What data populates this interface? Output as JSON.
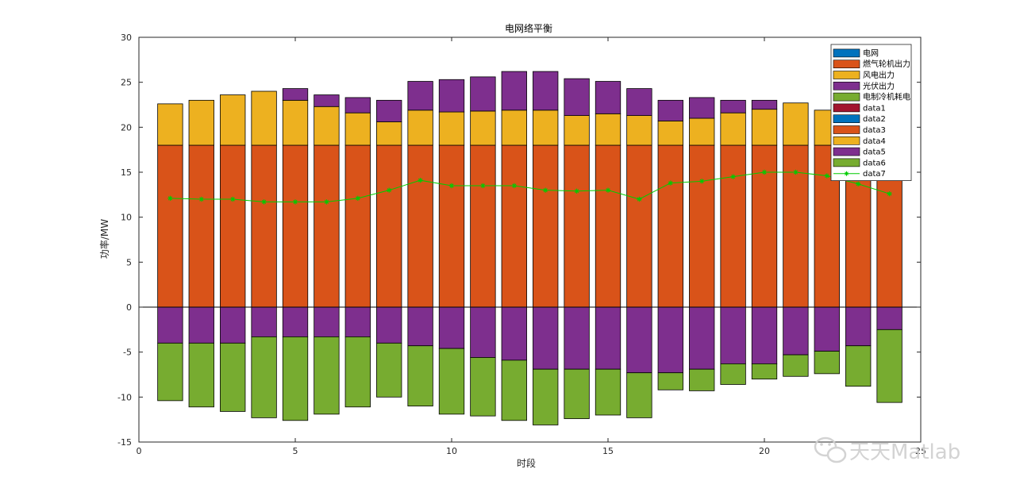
{
  "chart_data": {
    "type": "bar",
    "stacked": true,
    "title": "电网络平衡",
    "xlabel": "时段",
    "ylabel": "功率/MW",
    "xlim": [
      0,
      25
    ],
    "ylim": [
      -15,
      30
    ],
    "xticks": [
      0,
      5,
      10,
      15,
      20,
      25
    ],
    "yticks": [
      -15,
      -10,
      -5,
      0,
      5,
      10,
      15,
      20,
      25,
      30
    ],
    "grid": false,
    "legend_position": "top-right",
    "x": [
      1,
      2,
      3,
      4,
      5,
      6,
      7,
      8,
      9,
      10,
      11,
      12,
      13,
      14,
      15,
      16,
      17,
      18,
      19,
      20,
      21,
      22,
      23,
      24
    ],
    "positive_series": [
      {
        "name": "电网",
        "color": "#0072BD",
        "values": [
          0,
          0,
          0,
          0,
          0,
          0,
          0,
          0,
          0,
          0,
          0,
          0,
          0,
          0,
          0,
          0,
          0,
          0,
          0,
          0,
          0,
          0,
          0,
          0
        ]
      },
      {
        "name": "燃气轮机出力",
        "color": "#D95319",
        "values": [
          18,
          18,
          18,
          18,
          18,
          18,
          18,
          18,
          18,
          18,
          18,
          18,
          18,
          18,
          18,
          18,
          18,
          18,
          18,
          18,
          18,
          18,
          18,
          18
        ]
      },
      {
        "name": "风电出力",
        "color": "#EDB120",
        "values": [
          4.6,
          5.0,
          5.6,
          6.0,
          5.0,
          4.3,
          3.6,
          2.6,
          3.9,
          3.7,
          3.8,
          3.9,
          3.9,
          3.3,
          3.5,
          3.3,
          2.7,
          3.0,
          3.6,
          4.0,
          4.7,
          3.9,
          0,
          0
        ]
      },
      {
        "name": "光伏出力",
        "color": "#7E2F8E",
        "values": [
          0,
          0,
          0,
          0,
          1.3,
          1.3,
          1.7,
          2.4,
          3.2,
          3.6,
          3.8,
          4.3,
          4.3,
          4.1,
          3.6,
          3.0,
          2.3,
          2.3,
          1.4,
          1.0,
          0,
          0,
          0,
          0
        ]
      },
      {
        "name": "电制冷机耗电",
        "color": "#77AC30",
        "values": [
          0,
          0,
          0,
          0,
          0,
          0,
          0,
          0,
          0,
          0,
          0,
          0,
          0,
          0,
          0,
          0,
          0,
          0,
          0,
          0,
          0,
          0,
          0,
          0
        ]
      }
    ],
    "negative_series": [
      {
        "name": "data1",
        "color": "#A2142F",
        "values": [
          0,
          0,
          0,
          0,
          0,
          0,
          0,
          0,
          0,
          0,
          0,
          0,
          0,
          0,
          0,
          0,
          0,
          0,
          0,
          0,
          0,
          0,
          0,
          0
        ]
      },
      {
        "name": "data2",
        "color": "#0072BD",
        "values": [
          0,
          0,
          0,
          0,
          0,
          0,
          0,
          0,
          0,
          0,
          0,
          0,
          0,
          0,
          0,
          0,
          0,
          0,
          0,
          0,
          0,
          0,
          0,
          0
        ]
      },
      {
        "name": "data3",
        "color": "#D95319",
        "values": [
          0,
          0,
          0,
          0,
          0,
          0,
          0,
          0,
          0,
          0,
          0,
          0,
          0,
          0,
          0,
          0,
          0,
          0,
          0,
          0,
          0,
          0,
          0,
          0
        ]
      },
      {
        "name": "data4",
        "color": "#EDB120",
        "values": [
          0,
          0,
          0,
          0,
          0,
          0,
          0,
          0,
          0,
          0,
          0,
          0,
          0,
          0,
          0,
          0,
          0,
          0,
          0,
          0,
          0,
          0,
          0,
          0
        ]
      },
      {
        "name": "data5",
        "color": "#7E2F8E",
        "values": [
          -4.0,
          -4.0,
          -4.0,
          -3.3,
          -3.3,
          -3.3,
          -3.3,
          -4.0,
          -4.3,
          -4.6,
          -5.6,
          -5.9,
          -6.9,
          -6.9,
          -6.9,
          -7.3,
          -7.3,
          -6.9,
          -6.3,
          -6.3,
          -5.3,
          -4.9,
          -4.3,
          -2.5
        ]
      },
      {
        "name": "data6",
        "color": "#77AC30",
        "values": [
          -6.4,
          -7.1,
          -7.6,
          -9.0,
          -9.3,
          -8.6,
          -7.8,
          -6.0,
          -6.7,
          -7.3,
          -6.5,
          -6.7,
          -6.2,
          -5.5,
          -5.1,
          -5.0,
          -1.9,
          -2.4,
          -2.3,
          -1.7,
          -2.4,
          -2.5,
          -4.5,
          -8.1
        ]
      }
    ],
    "line": {
      "name": "data7",
      "color": "#00CC00",
      "marker": "*",
      "values": [
        12.1,
        12.0,
        12.0,
        11.7,
        11.7,
        11.7,
        12.1,
        13.0,
        14.1,
        13.5,
        13.5,
        13.5,
        13.0,
        12.9,
        13.0,
        12.0,
        13.8,
        14.0,
        14.5,
        15.0,
        15.0,
        14.6,
        13.7,
        12.6
      ]
    },
    "legend_entries": [
      "电网",
      "燃气轮机出力",
      "风电出力",
      "光伏出力",
      "电制冷机耗电",
      "data1",
      "data2",
      "data3",
      "data4",
      "data5",
      "data6",
      "data7"
    ]
  },
  "watermark": {
    "text": "天天Matlab",
    "icon": "wechat-icon"
  }
}
